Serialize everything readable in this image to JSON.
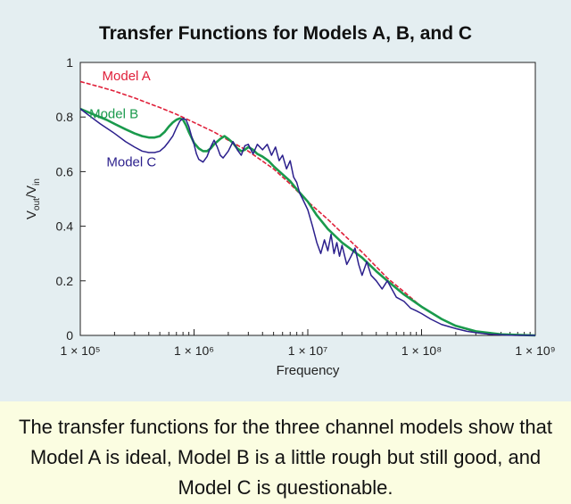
{
  "chart_data": {
    "type": "line",
    "title": "Transfer Functions for Models A, B, and C",
    "xlabel": "Frequency",
    "ylabel_main": "V",
    "ylabel_sub1": "out",
    "ylabel_slash": "/V",
    "ylabel_sub2": "in",
    "x_scale": "log",
    "xlim": [
      100000,
      1000000000
    ],
    "ylim": [
      0,
      1
    ],
    "x_ticks": [
      100000,
      1000000,
      10000000,
      100000000,
      1000000000
    ],
    "x_tick_labels": [
      "1 × 10⁵",
      "1 × 10⁶",
      "1 × 10⁷",
      "1 × 10⁸",
      "1 × 10⁹"
    ],
    "y_ticks": [
      0,
      0.2,
      0.4,
      0.6,
      0.8,
      1
    ],
    "y_tick_labels": [
      "0",
      "0.2",
      "0.4",
      "0.6",
      "0.8",
      "1"
    ],
    "grid": false,
    "series": [
      {
        "name": "Model A",
        "color": "#e0203a",
        "x": [
          100000,
          150000,
          200000,
          300000,
          400000,
          500000,
          700000,
          1000000,
          1500000,
          2000000,
          3000000,
          5000000,
          7000000,
          10000000,
          15000000,
          20000000,
          30000000,
          50000000,
          70000000,
          100000000,
          150000000,
          200000000,
          300000000,
          400000000,
          600000000,
          1000000000
        ],
        "y": [
          0.93,
          0.91,
          0.895,
          0.87,
          0.85,
          0.835,
          0.81,
          0.78,
          0.745,
          0.715,
          0.675,
          0.61,
          0.555,
          0.49,
          0.425,
          0.375,
          0.305,
          0.21,
          0.16,
          0.105,
          0.06,
          0.035,
          0.012,
          0.004,
          0.001,
          0.0
        ]
      },
      {
        "name": "Model B",
        "color": "#1a9a4c",
        "x": [
          100000,
          130000,
          170000,
          200000,
          250000,
          300000,
          350000,
          400000,
          450000,
          500000,
          550000,
          600000,
          650000,
          700000,
          750000,
          800000,
          850000,
          900000,
          950000,
          1000000,
          1100000,
          1200000,
          1300000,
          1400000,
          1500000,
          1700000,
          1850000,
          2000000,
          2200000,
          2400000,
          2600000,
          2800000,
          3000000,
          3300000,
          3600000,
          4000000,
          4500000,
          5000000,
          6000000,
          7000000,
          8000000,
          10000000,
          12000000,
          15000000,
          20000000,
          25000000,
          30000000,
          40000000,
          50000000,
          70000000,
          100000000,
          150000000,
          200000000,
          300000000,
          500000000,
          1000000000
        ],
        "y": [
          0.83,
          0.81,
          0.79,
          0.775,
          0.755,
          0.74,
          0.73,
          0.725,
          0.725,
          0.73,
          0.745,
          0.765,
          0.78,
          0.79,
          0.795,
          0.79,
          0.77,
          0.745,
          0.725,
          0.705,
          0.685,
          0.675,
          0.675,
          0.685,
          0.7,
          0.72,
          0.73,
          0.72,
          0.705,
          0.685,
          0.675,
          0.68,
          0.69,
          0.68,
          0.665,
          0.655,
          0.64,
          0.62,
          0.59,
          0.565,
          0.535,
          0.49,
          0.44,
          0.39,
          0.34,
          0.31,
          0.285,
          0.235,
          0.2,
          0.15,
          0.105,
          0.06,
          0.035,
          0.015,
          0.004,
          0.0
        ]
      },
      {
        "name": "Model C",
        "color": "#2b1f8c",
        "x": [
          100000,
          120000,
          150000,
          200000,
          250000,
          300000,
          350000,
          400000,
          450000,
          500000,
          550000,
          600000,
          650000,
          700000,
          750000,
          800000,
          850000,
          900000,
          950000,
          1000000,
          1050000,
          1100000,
          1200000,
          1300000,
          1400000,
          1500000,
          1600000,
          1700000,
          1800000,
          2000000,
          2200000,
          2400000,
          2600000,
          2800000,
          3000000,
          3300000,
          3600000,
          4000000,
          4400000,
          4800000,
          5200000,
          5600000,
          6000000,
          6500000,
          7000000,
          7500000,
          8000000,
          8500000,
          9000000,
          10000000,
          11000000,
          12000000,
          13000000,
          14000000,
          15000000,
          16000000,
          17000000,
          18000000,
          19000000,
          20000000,
          22000000,
          24000000,
          26000000,
          28000000,
          30000000,
          33000000,
          36000000,
          40000000,
          45000000,
          50000000,
          60000000,
          70000000,
          80000000,
          90000000,
          100000000,
          120000000,
          150000000,
          200000000,
          250000000,
          300000000,
          400000000,
          600000000,
          1000000000
        ],
        "y": [
          0.83,
          0.805,
          0.775,
          0.74,
          0.71,
          0.69,
          0.675,
          0.67,
          0.67,
          0.675,
          0.69,
          0.71,
          0.73,
          0.76,
          0.785,
          0.795,
          0.79,
          0.765,
          0.73,
          0.7,
          0.665,
          0.645,
          0.635,
          0.655,
          0.69,
          0.715,
          0.69,
          0.66,
          0.65,
          0.675,
          0.71,
          0.68,
          0.66,
          0.695,
          0.7,
          0.665,
          0.7,
          0.68,
          0.7,
          0.66,
          0.69,
          0.64,
          0.66,
          0.61,
          0.64,
          0.58,
          0.56,
          0.52,
          0.5,
          0.46,
          0.4,
          0.34,
          0.3,
          0.35,
          0.31,
          0.37,
          0.3,
          0.34,
          0.29,
          0.33,
          0.26,
          0.29,
          0.32,
          0.26,
          0.22,
          0.27,
          0.22,
          0.2,
          0.17,
          0.2,
          0.14,
          0.125,
          0.1,
          0.09,
          0.08,
          0.06,
          0.04,
          0.025,
          0.015,
          0.01,
          0.004,
          0.001,
          0.0
        ]
      }
    ]
  },
  "caption": "The transfer functions for the three channel models show that Model A is ideal, Model B is a little rough but still good, and Model C is questionable."
}
